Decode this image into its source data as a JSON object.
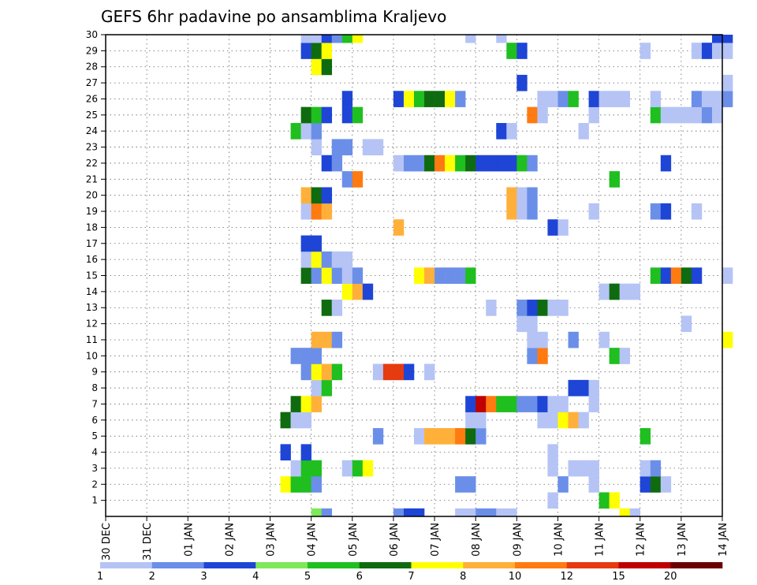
{
  "chart_data": {
    "type": "heatmap",
    "title": "GEFS 6hr padavine po ansamblima Kraljevo",
    "xlabel": "",
    "ylabel": "",
    "x_ticks": [
      "30 DEC",
      "31 DEC",
      "01 JAN",
      "02 JAN",
      "03 JAN",
      "04 JAN",
      "05 JAN",
      "06 JAN",
      "07 JAN",
      "08 JAN",
      "09 JAN",
      "10 JAN",
      "11 JAN",
      "12 JAN",
      "13 JAN",
      "14 JAN"
    ],
    "y_ticks": [
      "1",
      "2",
      "3",
      "4",
      "5",
      "6",
      "7",
      "8",
      "9",
      "10",
      "11",
      "12",
      "13",
      "14",
      "15",
      "16",
      "17",
      "18",
      "19",
      "20",
      "21",
      "22",
      "23",
      "24",
      "25",
      "26",
      "27",
      "28",
      "29",
      "30"
    ],
    "x_range_days": [
      0,
      15
    ],
    "y_range_members": [
      0,
      30
    ],
    "grid": "dotted",
    "legend_position": "bottom",
    "legend": {
      "levels": [
        "1",
        "2",
        "3",
        "4",
        "5",
        "6",
        "7",
        "8",
        "10",
        "12",
        "15",
        "20"
      ],
      "colors": [
        "#b5c4f5",
        "#6b8fe8",
        "#1f45d6",
        "#7fe85a",
        "#1fbf1f",
        "#0f6b0f",
        "#ffff00",
        "#ffb03a",
        "#ff7a10",
        "#e63a10",
        "#c00000",
        "#6b0000"
      ]
    },
    "cells": [
      [
        0,
        5.0,
        4
      ],
      [
        0,
        5.25,
        2
      ],
      [
        0,
        7.0,
        2
      ],
      [
        0,
        7.25,
        3
      ],
      [
        0,
        7.5,
        3
      ],
      [
        0,
        8.5,
        1
      ],
      [
        0,
        8.75,
        1
      ],
      [
        0,
        9.0,
        2
      ],
      [
        0,
        9.25,
        2
      ],
      [
        0,
        9.5,
        1
      ],
      [
        0,
        9.75,
        1
      ],
      [
        0,
        12.5,
        7
      ],
      [
        0,
        12.75,
        1
      ],
      [
        1,
        10.75,
        1
      ],
      [
        1,
        12.0,
        5
      ],
      [
        1,
        12.25,
        7
      ],
      [
        2,
        4.25,
        7
      ],
      [
        2,
        4.5,
        5
      ],
      [
        2,
        4.75,
        5
      ],
      [
        2,
        5.0,
        2
      ],
      [
        2,
        8.5,
        2
      ],
      [
        2,
        8.75,
        2
      ],
      [
        2,
        11.0,
        2
      ],
      [
        2,
        11.75,
        1
      ],
      [
        2,
        13.0,
        3
      ],
      [
        2,
        13.25,
        6
      ],
      [
        2,
        13.5,
        1
      ],
      [
        3,
        4.5,
        1
      ],
      [
        3,
        4.75,
        5
      ],
      [
        3,
        5.0,
        5
      ],
      [
        3,
        5.75,
        1
      ],
      [
        3,
        6.0,
        5
      ],
      [
        3,
        6.25,
        7
      ],
      [
        3,
        10.75,
        1
      ],
      [
        3,
        11.25,
        1
      ],
      [
        3,
        11.5,
        1
      ],
      [
        3,
        11.75,
        1
      ],
      [
        3,
        13.0,
        1
      ],
      [
        3,
        13.25,
        2
      ],
      [
        4,
        4.25,
        3
      ],
      [
        4,
        4.75,
        3
      ],
      [
        4,
        10.75,
        1
      ],
      [
        5,
        6.5,
        2
      ],
      [
        5,
        7.5,
        1
      ],
      [
        5,
        7.75,
        8
      ],
      [
        5,
        8.0,
        8
      ],
      [
        5,
        8.25,
        8
      ],
      [
        5,
        8.5,
        9
      ],
      [
        5,
        8.75,
        6
      ],
      [
        5,
        9.0,
        2
      ],
      [
        5,
        13.0,
        5
      ],
      [
        6,
        4.25,
        6
      ],
      [
        6,
        4.5,
        1
      ],
      [
        6,
        4.75,
        1
      ],
      [
        6,
        8.75,
        1
      ],
      [
        6,
        9.0,
        1
      ],
      [
        6,
        10.5,
        1
      ],
      [
        6,
        10.75,
        1
      ],
      [
        6,
        11.0,
        7
      ],
      [
        6,
        11.25,
        8
      ],
      [
        6,
        11.5,
        1
      ],
      [
        7,
        4.5,
        6
      ],
      [
        7,
        4.75,
        7
      ],
      [
        7,
        5.0,
        8
      ],
      [
        7,
        8.75,
        3
      ],
      [
        7,
        9.0,
        11
      ],
      [
        7,
        9.25,
        9
      ],
      [
        7,
        9.5,
        5
      ],
      [
        7,
        9.75,
        5
      ],
      [
        7,
        10.0,
        2
      ],
      [
        7,
        10.25,
        2
      ],
      [
        7,
        10.5,
        3
      ],
      [
        7,
        10.75,
        1
      ],
      [
        7,
        11.0,
        1
      ],
      [
        7,
        11.75,
        1
      ],
      [
        8,
        5.0,
        1
      ],
      [
        8,
        5.25,
        5
      ],
      [
        8,
        11.25,
        3
      ],
      [
        8,
        11.5,
        3
      ],
      [
        8,
        11.75,
        1
      ],
      [
        9,
        4.75,
        2
      ],
      [
        9,
        5.0,
        7
      ],
      [
        9,
        5.25,
        8
      ],
      [
        9,
        5.5,
        5
      ],
      [
        9,
        6.5,
        1
      ],
      [
        9,
        6.75,
        10
      ],
      [
        9,
        7.0,
        10
      ],
      [
        9,
        7.25,
        3
      ],
      [
        9,
        7.75,
        1
      ],
      [
        10,
        4.5,
        2
      ],
      [
        10,
        4.75,
        2
      ],
      [
        10,
        5.0,
        2
      ],
      [
        10,
        10.25,
        2
      ],
      [
        10,
        10.5,
        9
      ],
      [
        10,
        12.25,
        5
      ],
      [
        10,
        12.5,
        1
      ],
      [
        11,
        5.0,
        8
      ],
      [
        11,
        5.25,
        8
      ],
      [
        11,
        5.5,
        2
      ],
      [
        11,
        10.25,
        1
      ],
      [
        11,
        10.5,
        1
      ],
      [
        11,
        11.25,
        2
      ],
      [
        11,
        12.0,
        1
      ],
      [
        11,
        15.0,
        7
      ],
      [
        12,
        10.0,
        1
      ],
      [
        12,
        10.25,
        1
      ],
      [
        12,
        14.0,
        1
      ],
      [
        13,
        5.25,
        6
      ],
      [
        13,
        5.5,
        1
      ],
      [
        13,
        9.25,
        1
      ],
      [
        13,
        10.0,
        2
      ],
      [
        13,
        10.25,
        3
      ],
      [
        13,
        10.5,
        6
      ],
      [
        13,
        10.75,
        1
      ],
      [
        13,
        11.0,
        1
      ],
      [
        14,
        5.75,
        7
      ],
      [
        14,
        6.0,
        8
      ],
      [
        14,
        6.25,
        3
      ],
      [
        14,
        12.0,
        1
      ],
      [
        14,
        12.25,
        6
      ],
      [
        14,
        12.5,
        1
      ],
      [
        14,
        12.75,
        1
      ],
      [
        15,
        4.75,
        6
      ],
      [
        15,
        5.0,
        2
      ],
      [
        15,
        5.25,
        7
      ],
      [
        15,
        5.5,
        2
      ],
      [
        15,
        5.75,
        1
      ],
      [
        15,
        6.0,
        2
      ],
      [
        15,
        7.5,
        7
      ],
      [
        15,
        7.75,
        8
      ],
      [
        15,
        8.0,
        2
      ],
      [
        15,
        8.25,
        2
      ],
      [
        15,
        8.5,
        2
      ],
      [
        15,
        8.75,
        5
      ],
      [
        15,
        13.25,
        5
      ],
      [
        15,
        13.5,
        3
      ],
      [
        15,
        13.75,
        9
      ],
      [
        15,
        14.0,
        6
      ],
      [
        15,
        14.25,
        3
      ],
      [
        15,
        15.0,
        1
      ],
      [
        16,
        4.75,
        1
      ],
      [
        16,
        5.0,
        7
      ],
      [
        16,
        5.25,
        2
      ],
      [
        16,
        5.5,
        1
      ],
      [
        16,
        5.75,
        1
      ],
      [
        17,
        4.75,
        3
      ],
      [
        17,
        5.0,
        3
      ],
      [
        18,
        7.0,
        8
      ],
      [
        18,
        10.75,
        3
      ],
      [
        18,
        11.0,
        1
      ],
      [
        19,
        4.75,
        1
      ],
      [
        19,
        5.0,
        9
      ],
      [
        19,
        5.25,
        8
      ],
      [
        19,
        9.75,
        8
      ],
      [
        19,
        10.0,
        1
      ],
      [
        19,
        10.25,
        2
      ],
      [
        19,
        11.75,
        1
      ],
      [
        19,
        13.25,
        2
      ],
      [
        19,
        13.5,
        3
      ],
      [
        19,
        14.25,
        1
      ],
      [
        20,
        4.75,
        8
      ],
      [
        20,
        5.0,
        6
      ],
      [
        20,
        5.25,
        3
      ],
      [
        20,
        9.75,
        8
      ],
      [
        20,
        10.0,
        1
      ],
      [
        20,
        10.25,
        2
      ],
      [
        21,
        5.75,
        2
      ],
      [
        21,
        6.0,
        9
      ],
      [
        21,
        12.25,
        5
      ],
      [
        22,
        5.25,
        3
      ],
      [
        22,
        5.5,
        2
      ],
      [
        22,
        7.0,
        1
      ],
      [
        22,
        7.25,
        2
      ],
      [
        22,
        7.5,
        2
      ],
      [
        22,
        7.75,
        6
      ],
      [
        22,
        8.0,
        9
      ],
      [
        22,
        8.25,
        7
      ],
      [
        22,
        8.5,
        5
      ],
      [
        22,
        8.75,
        6
      ],
      [
        22,
        9.0,
        3
      ],
      [
        22,
        9.25,
        3
      ],
      [
        22,
        9.5,
        3
      ],
      [
        22,
        9.75,
        3
      ],
      [
        22,
        10.0,
        5
      ],
      [
        22,
        10.25,
        2
      ],
      [
        22,
        13.5,
        3
      ],
      [
        23,
        5.0,
        1
      ],
      [
        23,
        5.5,
        2
      ],
      [
        23,
        5.75,
        2
      ],
      [
        23,
        6.25,
        1
      ],
      [
        23,
        6.5,
        1
      ],
      [
        24,
        4.5,
        5
      ],
      [
        24,
        4.75,
        1
      ],
      [
        24,
        5.0,
        2
      ],
      [
        24,
        9.5,
        3
      ],
      [
        24,
        9.75,
        1
      ],
      [
        24,
        11.5,
        1
      ],
      [
        25,
        4.75,
        6
      ],
      [
        25,
        5.0,
        5
      ],
      [
        25,
        5.25,
        3
      ],
      [
        25,
        5.75,
        3
      ],
      [
        25,
        6.0,
        5
      ],
      [
        25,
        10.25,
        9
      ],
      [
        25,
        10.5,
        1
      ],
      [
        25,
        11.75,
        1
      ],
      [
        25,
        13.25,
        5
      ],
      [
        25,
        13.5,
        1
      ],
      [
        25,
        13.75,
        1
      ],
      [
        25,
        14.0,
        1
      ],
      [
        25,
        14.25,
        1
      ],
      [
        25,
        14.5,
        2
      ],
      [
        25,
        14.75,
        1
      ],
      [
        26,
        5.75,
        3
      ],
      [
        26,
        7.0,
        3
      ],
      [
        26,
        7.25,
        7
      ],
      [
        26,
        7.5,
        5
      ],
      [
        26,
        7.75,
        6
      ],
      [
        26,
        8.0,
        6
      ],
      [
        26,
        8.25,
        7
      ],
      [
        26,
        8.5,
        2
      ],
      [
        26,
        10.5,
        1
      ],
      [
        26,
        10.75,
        1
      ],
      [
        26,
        11.0,
        2
      ],
      [
        26,
        11.25,
        5
      ],
      [
        26,
        11.75,
        3
      ],
      [
        26,
        12.0,
        1
      ],
      [
        26,
        12.25,
        1
      ],
      [
        26,
        12.5,
        1
      ],
      [
        26,
        13.25,
        1
      ],
      [
        26,
        14.25,
        2
      ],
      [
        26,
        14.5,
        1
      ],
      [
        26,
        14.75,
        1
      ],
      [
        26,
        15.0,
        2
      ],
      [
        27,
        10.0,
        3
      ],
      [
        27,
        15.0,
        1
      ],
      [
        28,
        5.0,
        7
      ],
      [
        28,
        5.25,
        6
      ],
      [
        29,
        4.75,
        3
      ],
      [
        29,
        5.0,
        6
      ],
      [
        29,
        5.25,
        7
      ],
      [
        29,
        9.75,
        5
      ],
      [
        29,
        10.0,
        3
      ],
      [
        29,
        13.0,
        1
      ],
      [
        29,
        14.25,
        1
      ],
      [
        29,
        14.5,
        3
      ],
      [
        29,
        14.75,
        1
      ],
      [
        29,
        15.0,
        1
      ],
      [
        30,
        4.75,
        1
      ],
      [
        30,
        5.0,
        1
      ],
      [
        30,
        5.25,
        3
      ],
      [
        30,
        5.5,
        2
      ],
      [
        30,
        5.75,
        5
      ],
      [
        30,
        6.0,
        7
      ],
      [
        30,
        8.75,
        1
      ],
      [
        30,
        9.5,
        1
      ],
      [
        30,
        14.75,
        3
      ],
      [
        30,
        15.0,
        3
      ]
    ]
  }
}
